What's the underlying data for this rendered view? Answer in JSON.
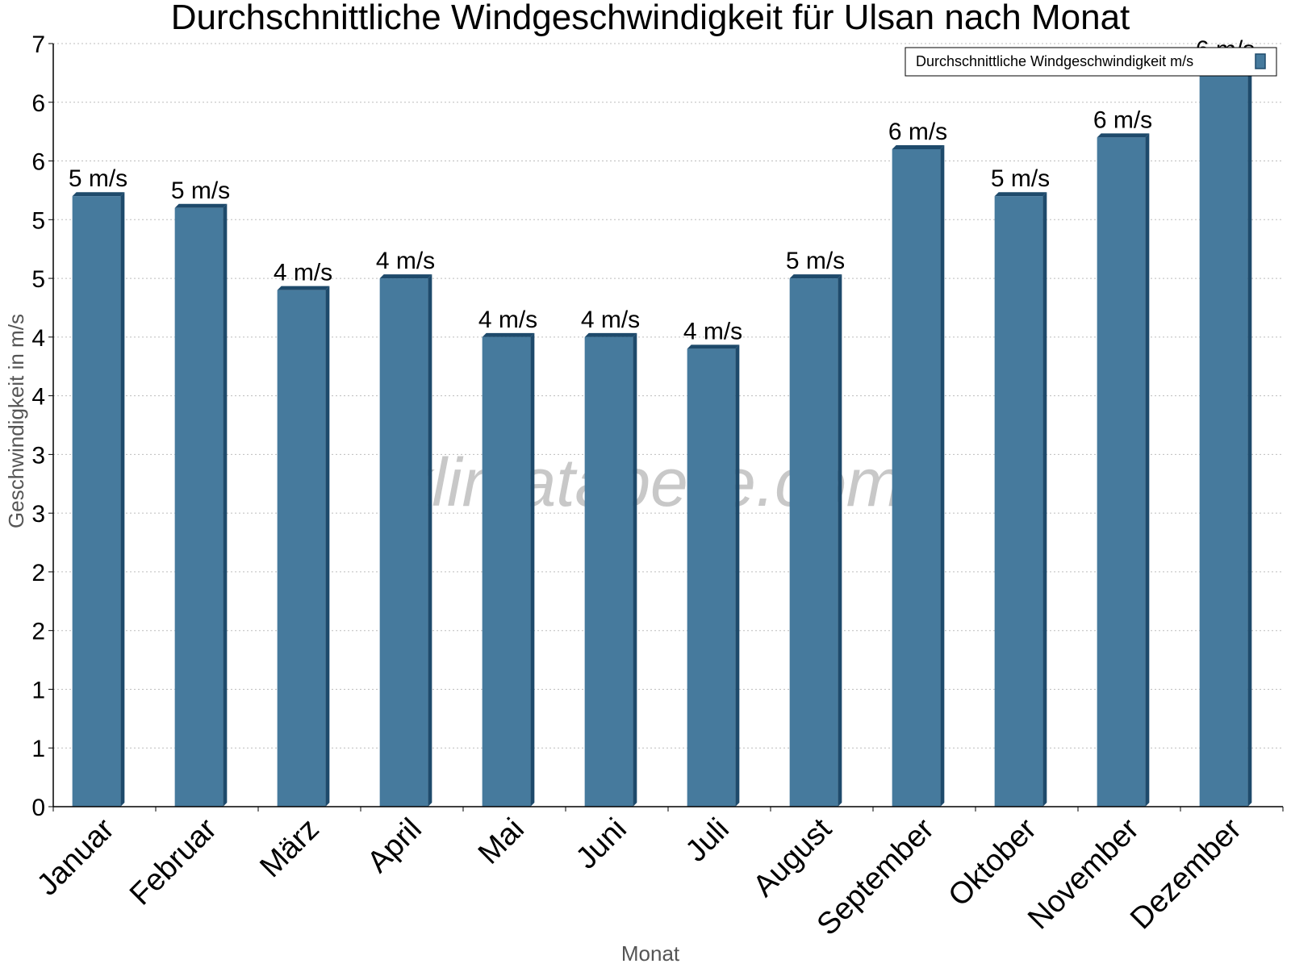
{
  "chart_data": {
    "type": "bar",
    "title": "Durchschnittliche Windgeschwindigkeit für Ulsan nach Monat",
    "xlabel": "Monat",
    "ylabel": "Geschwindigkeit in m/s",
    "categories": [
      "Januar",
      "Februar",
      "März",
      "April",
      "Mai",
      "Juni",
      "Juli",
      "August",
      "September",
      "Oktober",
      "November",
      "Dezember"
    ],
    "series": [
      {
        "name": "Durchschnittliche Windgeschwindigkeit m/s",
        "values": [
          5.2,
          5.1,
          4.4,
          4.5,
          4.0,
          4.0,
          3.9,
          4.5,
          5.6,
          5.2,
          5.7,
          6.3
        ],
        "labels": [
          "5 m/s",
          "5 m/s",
          "4 m/s",
          "4 m/s",
          "4 m/s",
          "4 m/s",
          "4 m/s",
          "5 m/s",
          "6 m/s",
          "5 m/s",
          "6 m/s",
          "6 m/s"
        ],
        "color": "#467a9d",
        "side_color": "#1e4a6b"
      }
    ],
    "ylim": [
      0,
      6.5
    ],
    "yticks": [
      0,
      0.5,
      1,
      1.5,
      2,
      2.5,
      3,
      3.5,
      4,
      4.5,
      5,
      5.5,
      6,
      6.5
    ],
    "ytick_labels": [
      "0",
      "1",
      "1",
      "2",
      "2",
      "3",
      "3",
      "4",
      "4",
      "5",
      "5",
      "6",
      "6",
      "7"
    ],
    "grid": true,
    "legend_position": "top-right"
  },
  "watermark": "klimatabelle.com"
}
